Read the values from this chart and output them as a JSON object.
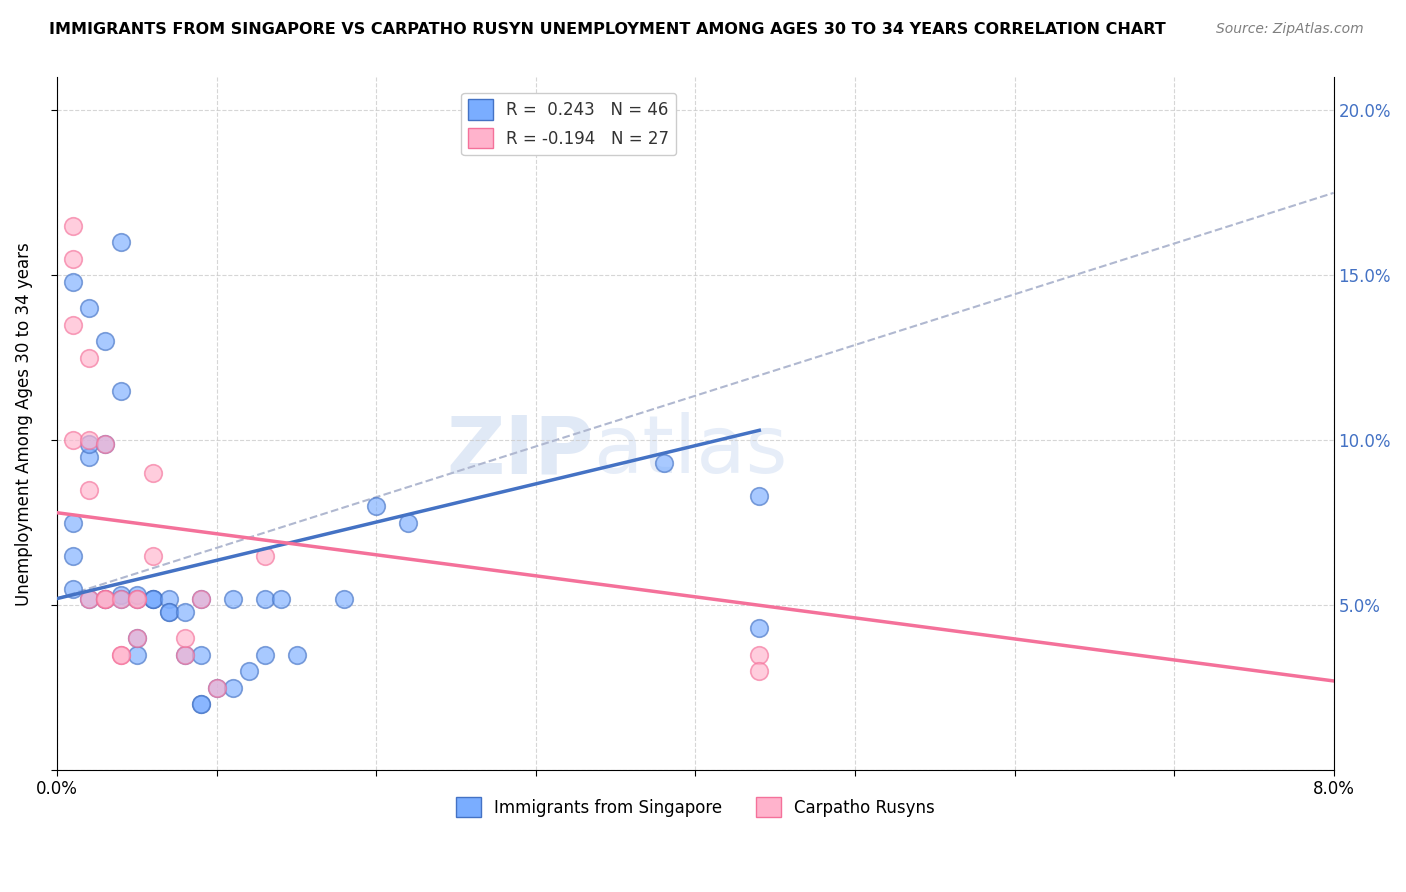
{
  "title": "IMMIGRANTS FROM SINGAPORE VS CARPATHO RUSYN UNEMPLOYMENT AMONG AGES 30 TO 34 YEARS CORRELATION CHART",
  "source": "Source: ZipAtlas.com",
  "ylabel": "Unemployment Among Ages 30 to 34 years",
  "xlim": [
    0.0,
    0.08
  ],
  "ylim": [
    0.0,
    0.21
  ],
  "blue_R": 0.243,
  "blue_N": 46,
  "pink_R": -0.194,
  "pink_N": 27,
  "blue_scatter": [
    [
      0.001,
      0.065
    ],
    [
      0.001,
      0.055
    ],
    [
      0.001,
      0.075
    ],
    [
      0.001,
      0.148
    ],
    [
      0.002,
      0.14
    ],
    [
      0.002,
      0.052
    ],
    [
      0.002,
      0.095
    ],
    [
      0.002,
      0.099
    ],
    [
      0.003,
      0.13
    ],
    [
      0.003,
      0.052
    ],
    [
      0.003,
      0.099
    ],
    [
      0.003,
      0.052
    ],
    [
      0.004,
      0.115
    ],
    [
      0.004,
      0.053
    ],
    [
      0.004,
      0.16
    ],
    [
      0.004,
      0.052
    ],
    [
      0.005,
      0.052
    ],
    [
      0.005,
      0.053
    ],
    [
      0.005,
      0.035
    ],
    [
      0.005,
      0.04
    ],
    [
      0.006,
      0.052
    ],
    [
      0.006,
      0.052
    ],
    [
      0.006,
      0.052
    ],
    [
      0.007,
      0.052
    ],
    [
      0.007,
      0.048
    ],
    [
      0.007,
      0.048
    ],
    [
      0.008,
      0.048
    ],
    [
      0.008,
      0.035
    ],
    [
      0.009,
      0.052
    ],
    [
      0.009,
      0.035
    ],
    [
      0.009,
      0.02
    ],
    [
      0.009,
      0.02
    ],
    [
      0.01,
      0.025
    ],
    [
      0.011,
      0.025
    ],
    [
      0.011,
      0.052
    ],
    [
      0.012,
      0.03
    ],
    [
      0.013,
      0.052
    ],
    [
      0.013,
      0.035
    ],
    [
      0.014,
      0.052
    ],
    [
      0.015,
      0.035
    ],
    [
      0.018,
      0.052
    ],
    [
      0.02,
      0.08
    ],
    [
      0.022,
      0.075
    ],
    [
      0.038,
      0.093
    ],
    [
      0.044,
      0.083
    ],
    [
      0.044,
      0.043
    ]
  ],
  "pink_scatter": [
    [
      0.001,
      0.165
    ],
    [
      0.001,
      0.155
    ],
    [
      0.001,
      0.135
    ],
    [
      0.001,
      0.1
    ],
    [
      0.002,
      0.125
    ],
    [
      0.002,
      0.085
    ],
    [
      0.002,
      0.1
    ],
    [
      0.002,
      0.052
    ],
    [
      0.003,
      0.099
    ],
    [
      0.003,
      0.052
    ],
    [
      0.003,
      0.052
    ],
    [
      0.003,
      0.052
    ],
    [
      0.004,
      0.052
    ],
    [
      0.004,
      0.035
    ],
    [
      0.004,
      0.035
    ],
    [
      0.005,
      0.052
    ],
    [
      0.005,
      0.04
    ],
    [
      0.005,
      0.052
    ],
    [
      0.006,
      0.09
    ],
    [
      0.006,
      0.065
    ],
    [
      0.008,
      0.035
    ],
    [
      0.008,
      0.04
    ],
    [
      0.009,
      0.052
    ],
    [
      0.01,
      0.025
    ],
    [
      0.013,
      0.065
    ],
    [
      0.044,
      0.035
    ],
    [
      0.044,
      0.03
    ]
  ],
  "blue_line_color": "#4472C4",
  "pink_line_color": "#F4719A",
  "dashed_line_color": "#B0B8D0",
  "blue_scatter_color": "#7AADFF",
  "pink_scatter_color": "#FFB3CC",
  "watermark_zip": "ZIP",
  "watermark_atlas": "atlas",
  "bg_color": "#FFFFFF",
  "grid_color": "#CCCCCC",
  "blue_line_x": [
    0.0,
    0.044
  ],
  "blue_line_y": [
    0.052,
    0.103
  ],
  "dashed_line_x": [
    0.0,
    0.08
  ],
  "dashed_line_y": [
    0.052,
    0.175
  ],
  "pink_line_x": [
    0.0,
    0.08
  ],
  "pink_line_y": [
    0.078,
    0.027
  ]
}
